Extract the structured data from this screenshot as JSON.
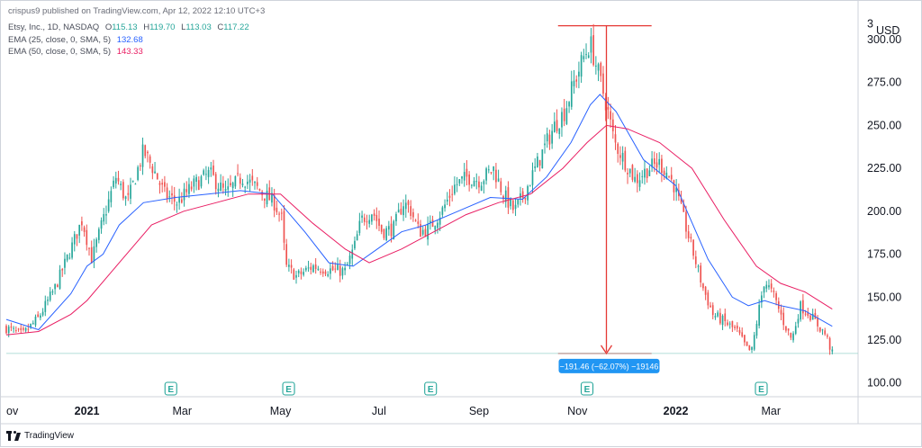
{
  "header": {
    "published": "crispus9 published on TradingView.com, Apr 12, 2022 12:10 UTC+3",
    "symbol": "Etsy, Inc., 1D, NASDAQ",
    "o_label": "O",
    "o_value": "115.13",
    "h_label": "H",
    "h_value": "119.70",
    "l_label": "L",
    "l_value": "113.03",
    "c_label": "C",
    "c_value": "117.22",
    "ema25_label": "EMA (25, close, 0, SMA, 5)",
    "ema25_value": "132.68",
    "ema50_label": "EMA (50, close, 0, SMA, 5)",
    "ema50_value": "143.33"
  },
  "footer": {
    "brand": "TradingView"
  },
  "colors": {
    "up": "#26a69a",
    "down": "#ef5350",
    "ema25": "#2962ff",
    "ema50": "#e91e63",
    "measure": "#e53935",
    "tag": "#2196f3"
  },
  "chart_data": {
    "type": "candlestick",
    "currency": "USD",
    "ylim": [
      92,
      312
    ],
    "y_ticks": [
      100,
      125,
      150,
      175,
      200,
      225,
      250,
      275,
      300
    ],
    "y_tick_labels": [
      "100.00",
      "125.00",
      "150.00",
      "175.00",
      "200.00",
      "225.00",
      "250.00",
      "275.00",
      "300.00"
    ],
    "x_ticks": [
      {
        "label": "ov",
        "day": -50,
        "bold": false
      },
      {
        "label": "2021",
        "day": 0,
        "bold": true
      },
      {
        "label": "Mar",
        "day": 59,
        "bold": false
      },
      {
        "label": "May",
        "day": 120,
        "bold": false
      },
      {
        "label": "Jul",
        "day": 181,
        "bold": false
      },
      {
        "label": "Sep",
        "day": 243,
        "bold": false
      },
      {
        "label": "Nov",
        "day": 304,
        "bold": false
      },
      {
        "label": "2022",
        "day": 365,
        "bold": true
      },
      {
        "label": "Mar",
        "day": 424,
        "bold": false
      }
    ],
    "x_range_days": [
      -50,
      478
    ],
    "close_path": [
      [
        -50,
        132
      ],
      [
        -40,
        128
      ],
      [
        -30,
        138
      ],
      [
        -20,
        155
      ],
      [
        -10,
        178
      ],
      [
        -3,
        195
      ],
      [
        3,
        172
      ],
      [
        10,
        195
      ],
      [
        18,
        220
      ],
      [
        25,
        205
      ],
      [
        35,
        235
      ],
      [
        41,
        225
      ],
      [
        48,
        210
      ],
      [
        56,
        205
      ],
      [
        66,
        215
      ],
      [
        76,
        222
      ],
      [
        86,
        210
      ],
      [
        96,
        220
      ],
      [
        106,
        213
      ],
      [
        116,
        205
      ],
      [
        121,
        195
      ],
      [
        123,
        168
      ],
      [
        130,
        162
      ],
      [
        140,
        168
      ],
      [
        150,
        166
      ],
      [
        160,
        165
      ],
      [
        166,
        180
      ],
      [
        170,
        195
      ],
      [
        177,
        200
      ],
      [
        183,
        188
      ],
      [
        190,
        190
      ],
      [
        196,
        205
      ],
      [
        200,
        202
      ],
      [
        206,
        188
      ],
      [
        212,
        190
      ],
      [
        220,
        200
      ],
      [
        228,
        215
      ],
      [
        236,
        220
      ],
      [
        244,
        218
      ],
      [
        252,
        225
      ],
      [
        258,
        210
      ],
      [
        265,
        200
      ],
      [
        271,
        210
      ],
      [
        278,
        225
      ],
      [
        285,
        240
      ],
      [
        290,
        250
      ],
      [
        296,
        258
      ],
      [
        302,
        275
      ],
      [
        308,
        290
      ],
      [
        312,
        298
      ],
      [
        317,
        280
      ],
      [
        322,
        262
      ],
      [
        327,
        240
      ],
      [
        333,
        230
      ],
      [
        340,
        218
      ],
      [
        348,
        225
      ],
      [
        355,
        228
      ],
      [
        360,
        222
      ],
      [
        364,
        215
      ],
      [
        370,
        195
      ],
      [
        376,
        175
      ],
      [
        382,
        155
      ],
      [
        388,
        140
      ],
      [
        396,
        135
      ],
      [
        403,
        130
      ],
      [
        409,
        120
      ],
      [
        412,
        118
      ],
      [
        416,
        140
      ],
      [
        420,
        160
      ],
      [
        426,
        150
      ],
      [
        432,
        135
      ],
      [
        437,
        125
      ],
      [
        442,
        145
      ],
      [
        448,
        140
      ],
      [
        452,
        135
      ],
      [
        458,
        128
      ],
      [
        462,
        117
      ]
    ],
    "series": [
      {
        "name": "EMA (25, close, 0, SMA, 5)",
        "last": 132.68,
        "points": [
          [
            -50,
            137
          ],
          [
            -30,
            131
          ],
          [
            -10,
            152
          ],
          [
            0,
            168
          ],
          [
            10,
            175
          ],
          [
            20,
            192
          ],
          [
            35,
            205
          ],
          [
            55,
            208
          ],
          [
            75,
            210
          ],
          [
            95,
            212
          ],
          [
            115,
            210
          ],
          [
            135,
            188
          ],
          [
            150,
            170
          ],
          [
            165,
            168
          ],
          [
            180,
            178
          ],
          [
            195,
            188
          ],
          [
            210,
            192
          ],
          [
            230,
            200
          ],
          [
            250,
            208
          ],
          [
            270,
            207
          ],
          [
            285,
            220
          ],
          [
            300,
            240
          ],
          [
            312,
            262
          ],
          [
            318,
            268
          ],
          [
            328,
            258
          ],
          [
            345,
            230
          ],
          [
            365,
            215
          ],
          [
            385,
            172
          ],
          [
            400,
            150
          ],
          [
            410,
            145
          ],
          [
            420,
            148
          ],
          [
            430,
            145
          ],
          [
            445,
            142
          ],
          [
            462,
            133
          ]
        ]
      },
      {
        "name": "EMA (50, close, 0, SMA, 5)",
        "last": 143.33,
        "points": [
          [
            -50,
            128
          ],
          [
            -30,
            130
          ],
          [
            -10,
            140
          ],
          [
            0,
            148
          ],
          [
            20,
            170
          ],
          [
            40,
            192
          ],
          [
            60,
            200
          ],
          [
            80,
            205
          ],
          [
            100,
            210
          ],
          [
            120,
            210
          ],
          [
            140,
            193
          ],
          [
            160,
            178
          ],
          [
            175,
            170
          ],
          [
            195,
            178
          ],
          [
            215,
            188
          ],
          [
            235,
            198
          ],
          [
            255,
            205
          ],
          [
            275,
            210
          ],
          [
            295,
            225
          ],
          [
            310,
            240
          ],
          [
            322,
            250
          ],
          [
            335,
            248
          ],
          [
            355,
            240
          ],
          [
            375,
            225
          ],
          [
            395,
            195
          ],
          [
            415,
            168
          ],
          [
            430,
            158
          ],
          [
            445,
            153
          ],
          [
            462,
            143
          ]
        ]
      }
    ],
    "candle_count": 340,
    "dividend_markers": [
      {
        "day": 52,
        "label": "E"
      },
      {
        "day": 125,
        "label": "E"
      },
      {
        "day": 213,
        "label": "E"
      },
      {
        "day": 310,
        "label": "E"
      },
      {
        "day": 418,
        "label": "E"
      }
    ],
    "measure": {
      "day": 322,
      "top": 308,
      "bottom": 117.2,
      "band_from": 292,
      "band_to": 350,
      "label": "−191.46 (−62.07%) −19146"
    },
    "last_price_line": 117.22
  }
}
